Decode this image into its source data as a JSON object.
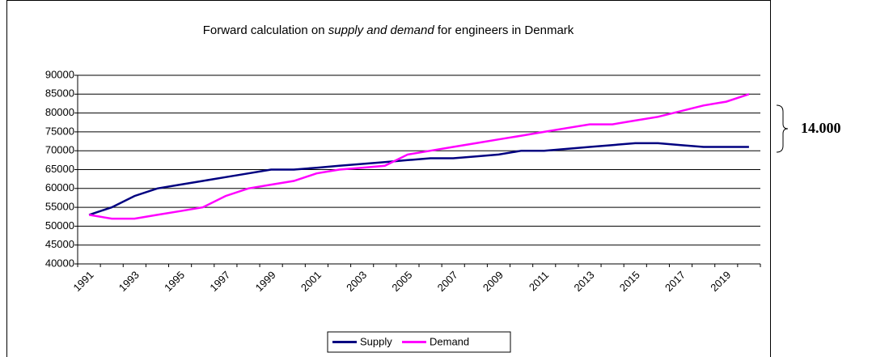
{
  "chart_data": {
    "type": "line",
    "title_parts": [
      "Forward calculation on ",
      "supply and demand",
      " for engineers in Denmark"
    ],
    "categories": [
      "1991",
      null,
      "1993",
      null,
      "1995",
      null,
      "1997",
      null,
      "1999",
      null,
      "2001",
      null,
      "2003",
      null,
      "2005",
      null,
      "2007",
      null,
      "2009",
      null,
      "2011",
      null,
      "2013",
      null,
      "2015",
      null,
      "2017",
      null,
      "2019",
      null
    ],
    "series": [
      {
        "name": "Supply",
        "color": "#000080",
        "values": [
          53000,
          55000,
          58000,
          60000,
          61000,
          62000,
          63000,
          64000,
          65000,
          65000,
          65500,
          66000,
          66500,
          67000,
          67500,
          68000,
          68000,
          68500,
          69000,
          70000,
          70000,
          70500,
          71000,
          71500,
          72000,
          72000,
          71500,
          71000,
          71000,
          71000
        ]
      },
      {
        "name": "Demand",
        "color": "#ff00ff",
        "values": [
          53000,
          52000,
          52000,
          53000,
          54000,
          55000,
          58000,
          60000,
          61000,
          62000,
          64000,
          65000,
          65500,
          66000,
          69000,
          70000,
          71000,
          72000,
          73000,
          74000,
          75000,
          76000,
          77000,
          77000,
          78000,
          79000,
          80500,
          82000,
          83000,
          85000
        ]
      }
    ],
    "ylim": [
      40000,
      90000
    ],
    "yticks": [
      40000,
      45000,
      50000,
      55000,
      60000,
      65000,
      70000,
      75000,
      80000,
      85000,
      90000
    ],
    "grid": true,
    "legend": "bottom",
    "annotation": "14.000"
  }
}
